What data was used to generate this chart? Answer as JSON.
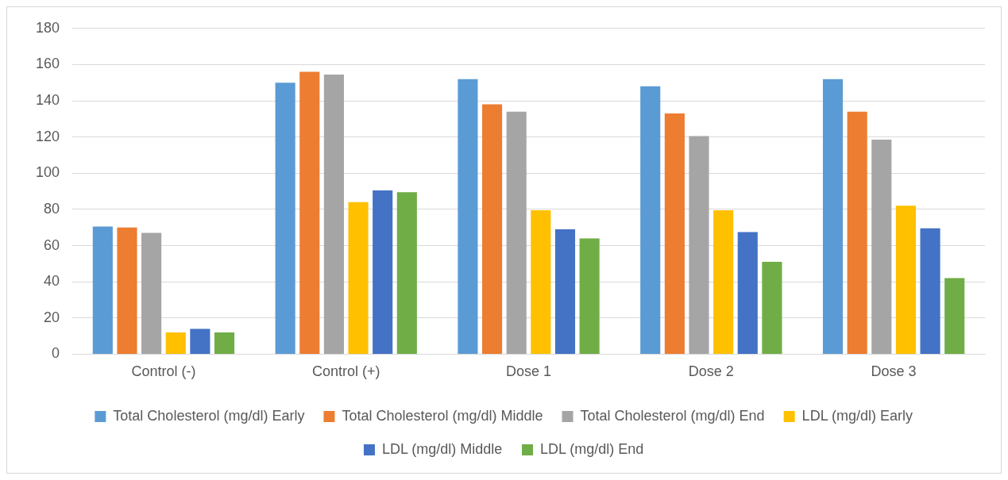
{
  "chart_data": {
    "type": "bar",
    "categories": [
      "Control (-)",
      "Control (+)",
      "Dose 1",
      "Dose 2",
      "Dose 3"
    ],
    "series": [
      {
        "name": "Total Cholesterol (mg/dl) Early",
        "color": "#5b9bd5",
        "values": [
          70.5,
          150,
          152,
          148,
          152
        ]
      },
      {
        "name": "Total Cholesterol (mg/dl) Middle",
        "color": "#ed7d31",
        "values": [
          70,
          156,
          138,
          133,
          134
        ]
      },
      {
        "name": "Total Cholesterol (mg/dl) End",
        "color": "#a5a5a5",
        "values": [
          67,
          154.5,
          134,
          120.5,
          118.5
        ]
      },
      {
        "name": "LDL (mg/dl) Early",
        "color": "#ffc000",
        "values": [
          12,
          84,
          79.5,
          79.5,
          82
        ]
      },
      {
        "name": "LDL (mg/dl) Middle",
        "color": "#4472c4",
        "values": [
          14,
          90.5,
          69,
          67.5,
          69.5
        ]
      },
      {
        "name": "LDL (mg/dl) End",
        "color": "#70ad47",
        "values": [
          12,
          89.5,
          64,
          51,
          42
        ]
      }
    ],
    "ylim": [
      0,
      180
    ],
    "yticks": [
      0,
      20,
      40,
      60,
      80,
      100,
      120,
      140,
      160,
      180
    ],
    "grid": "y",
    "legend": "bottom"
  }
}
